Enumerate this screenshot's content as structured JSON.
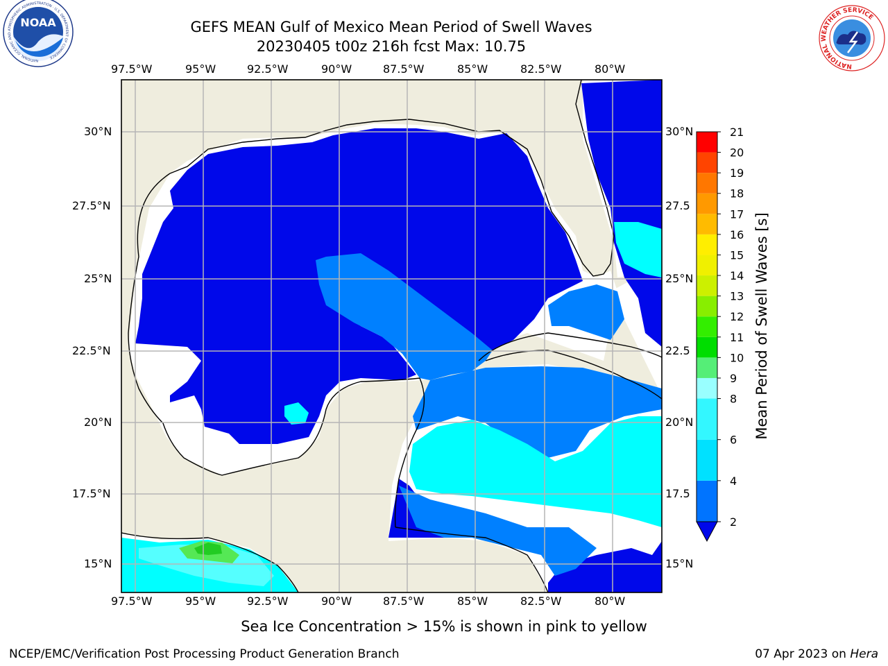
{
  "header": {
    "title_line1": "GEFS MEAN Gulf of Mexico Mean Period of Swell Waves",
    "title_line2": "20230405 t00z 216h fcst   Max: 10.75"
  },
  "logos": {
    "noaa_text": "NOAA",
    "noaa_ring_text": "NATIONAL OCEANIC AND ATMOSPHERIC ADMINISTRATION · U.S. DEPARTMENT OF COMMERCE",
    "nws_ring_text": "NATIONAL WEATHER SERVICE"
  },
  "map": {
    "lon_labels": [
      "97.5°W",
      "95°W",
      "92.5°W",
      "90°W",
      "87.5°W",
      "85°W",
      "82.5°W",
      "80°W"
    ],
    "lat_labels_left": [
      "30°N",
      "27.5°N",
      "25°N",
      "22.5°N",
      "20°N",
      "17.5°N",
      "15°N"
    ],
    "lat_labels_right": [
      "30°N",
      "27.5",
      "25°N",
      "22.5",
      "20°N",
      "17.5",
      "15°N"
    ],
    "extent": {
      "lon_min": -98,
      "lon_max": -78,
      "lat_min": 14,
      "lat_max": 32
    },
    "colors": {
      "land": "#efedde",
      "no_data": "#ffffff",
      "deep_blue": "#0008ea",
      "mid_blue": "#0080ff",
      "cyan": "#00ffff",
      "light_cyan": "#55ffff",
      "green": "#55e855"
    }
  },
  "colorbar": {
    "label": "Mean Period of Swell Waves [s]",
    "tick_labels": [
      "2",
      "4",
      "6",
      "8",
      "9",
      "10",
      "11",
      "12",
      "13",
      "14",
      "15",
      "16",
      "17",
      "18",
      "19",
      "20",
      "21"
    ],
    "bins": [
      {
        "from": 2,
        "to": 4,
        "color": "#0074ff"
      },
      {
        "from": 4,
        "to": 6,
        "color": "#00e1ff"
      },
      {
        "from": 6,
        "to": 8,
        "color": "#33f7ff"
      },
      {
        "from": 8,
        "to": 9,
        "color": "#99ffff"
      },
      {
        "from": 9,
        "to": 10,
        "color": "#55ee77"
      },
      {
        "from": 10,
        "to": 11,
        "color": "#00dd00"
      },
      {
        "from": 11,
        "to": 12,
        "color": "#33ee00"
      },
      {
        "from": 12,
        "to": 13,
        "color": "#88ee00"
      },
      {
        "from": 13,
        "to": 14,
        "color": "#ccf000"
      },
      {
        "from": 14,
        "to": 15,
        "color": "#f0f000"
      },
      {
        "from": 15,
        "to": 16,
        "color": "#ffee00"
      },
      {
        "from": 16,
        "to": 17,
        "color": "#ffbb00"
      },
      {
        "from": 17,
        "to": 18,
        "color": "#ff9900"
      },
      {
        "from": 18,
        "to": 19,
        "color": "#ff7700"
      },
      {
        "from": 19,
        "to": 20,
        "color": "#ff4400"
      },
      {
        "from": 20,
        "to": 21,
        "color": "#ff0000"
      }
    ],
    "extend_below_color": "#0008ea"
  },
  "footer": {
    "note": "Sea Ice Concentration > 15% is shown in pink to yellow",
    "credit": "NCEP/EMC/Verification Post Processing Product Generation Branch",
    "date": "07 Apr 2023 on",
    "machine": "Hera"
  }
}
